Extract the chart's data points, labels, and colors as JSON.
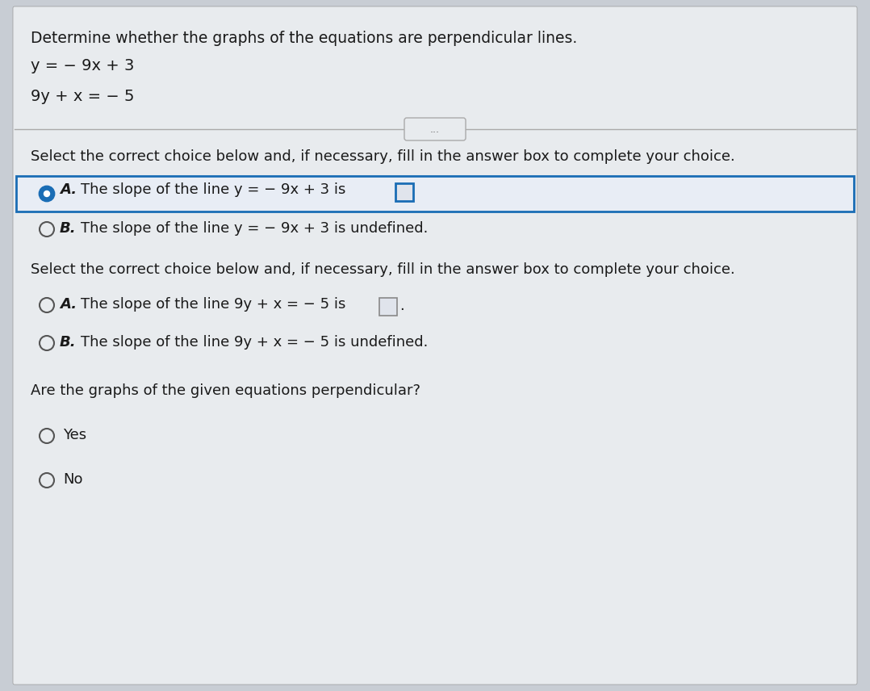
{
  "bg_color": "#c8cdd4",
  "content_bg": "#dde0e5",
  "title_text": "Determine whether the graphs of the equations are perpendicular lines.",
  "eq1": "y = − 9x + 3",
  "eq2": "9y + x = − 5",
  "divider_button_text": "...",
  "instruction1": "Select the correct choice below and, if necessary, fill in the answer box to complete your choice.",
  "optA1_label": "A.",
  "optA1_text": "The slope of the line y = − 9x + 3 is",
  "optB1_label": "B.",
  "optB1_text": "The slope of the line y = − 9x + 3 is undefined.",
  "instruction2": "Select the correct choice below and, if necessary, fill in the answer box to complete your choice.",
  "optA2_label": "A.",
  "optA2_text": "The slope of the line 9y + x = − 5 is",
  "optB2_label": "B.",
  "optB2_text": "The slope of the line 9y + x = − 5 is undefined.",
  "question3": "Are the graphs of the given equations perpendicular?",
  "optYes": "Yes",
  "optNo": "No",
  "text_color": "#1a1a1a",
  "radio_selected_fill": "#1a6db5",
  "radio_unselected_edge": "#555555",
  "highlight_border_color": "#1a6db5",
  "highlight_bg_color": "#e8edf5",
  "answer_box_border_selected": "#1a6db5",
  "answer_box_border_normal": "#888888",
  "answer_box_bg": "#e0e4ec",
  "font_size_title": 13.5,
  "font_size_eq": 14,
  "font_size_body": 13,
  "divider_color": "#aaaaaa",
  "white_panel_bg": "#e8ebee"
}
